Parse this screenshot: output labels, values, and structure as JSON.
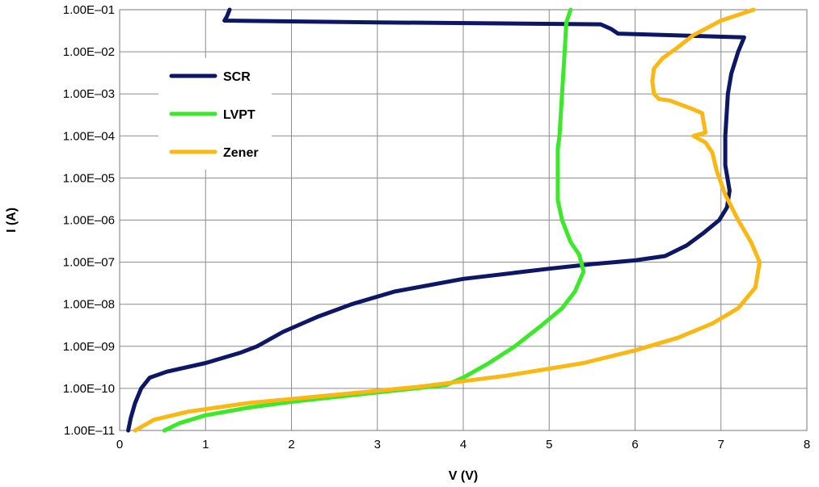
{
  "chart_data": {
    "type": "line",
    "title": "",
    "xlabel": "V (V)",
    "ylabel": "I (A)",
    "xlim": [
      0,
      8
    ],
    "y_scale": "log",
    "ylim": [
      1e-11,
      0.1
    ],
    "x_ticks": [
      "0",
      "1",
      "2",
      "3",
      "4",
      "5",
      "6",
      "7",
      "8"
    ],
    "y_ticks": [
      "1.00E–11",
      "1.00E–10",
      "1.00E–09",
      "1.00E–08",
      "1.00E–07",
      "1.00E–06",
      "1.00E–05",
      "1.00E–04",
      "1.00E–03",
      "1.00E–02",
      "1.00E–01"
    ],
    "grid": true,
    "legend_position": "top-left",
    "series": [
      {
        "name": "SCR",
        "color": "#0d1766",
        "points": [
          [
            0.1,
            1e-11
          ],
          [
            0.13,
            2e-11
          ],
          [
            0.18,
            4.5e-11
          ],
          [
            0.25,
            1e-10
          ],
          [
            0.35,
            1.8e-10
          ],
          [
            0.55,
            2.5e-10
          ],
          [
            1.0,
            4e-10
          ],
          [
            1.4,
            7e-10
          ],
          [
            1.6,
            1e-09
          ],
          [
            1.9,
            2.2e-09
          ],
          [
            2.3,
            5e-09
          ],
          [
            2.7,
            1e-08
          ],
          [
            3.2,
            2e-08
          ],
          [
            4.0,
            4e-08
          ],
          [
            5.0,
            7e-08
          ],
          [
            5.5,
            9e-08
          ],
          [
            6.0,
            1.1e-07
          ],
          [
            6.35,
            1.4e-07
          ],
          [
            6.6,
            2.5e-07
          ],
          [
            6.8,
            5e-07
          ],
          [
            6.98,
            1e-06
          ],
          [
            7.07,
            2e-06
          ],
          [
            7.1,
            5e-06
          ],
          [
            7.05,
            2e-05
          ],
          [
            7.05,
            0.0001
          ],
          [
            7.08,
            0.001
          ],
          [
            7.12,
            0.003
          ],
          [
            7.2,
            0.01
          ],
          [
            7.27,
            0.022
          ],
          [
            5.8,
            0.027
          ],
          [
            5.72,
            0.035
          ],
          [
            5.6,
            0.045
          ],
          [
            3.0,
            0.05
          ],
          [
            1.22,
            0.055
          ],
          [
            1.25,
            0.07
          ],
          [
            1.28,
            0.1
          ]
        ]
      },
      {
        "name": "LVPT",
        "color": "#3ce82a",
        "points": [
          [
            0.52,
            1e-11
          ],
          [
            0.7,
            1.5e-11
          ],
          [
            1.0,
            2.3e-11
          ],
          [
            1.5,
            3.5e-11
          ],
          [
            2.0,
            4.8e-11
          ],
          [
            3.0,
            8e-11
          ],
          [
            3.8,
            1.2e-10
          ],
          [
            4.0,
            1.8e-10
          ],
          [
            4.3,
            4e-10
          ],
          [
            4.6,
            1e-09
          ],
          [
            4.9,
            3e-09
          ],
          [
            5.15,
            8e-09
          ],
          [
            5.3,
            2e-08
          ],
          [
            5.4,
            6e-08
          ],
          [
            5.35,
            1.5e-07
          ],
          [
            5.25,
            3e-07
          ],
          [
            5.15,
            1e-06
          ],
          [
            5.1,
            3e-06
          ],
          [
            5.1,
            1e-05
          ],
          [
            5.1,
            5e-05
          ],
          [
            5.12,
            0.0001
          ],
          [
            5.15,
            0.001
          ],
          [
            5.18,
            0.01
          ],
          [
            5.2,
            0.05
          ],
          [
            5.25,
            0.1
          ]
        ]
      },
      {
        "name": "Zener",
        "color": "#fbb713",
        "points": [
          [
            0.18,
            1e-11
          ],
          [
            0.4,
            1.8e-11
          ],
          [
            0.8,
            2.8e-11
          ],
          [
            1.5,
            4.5e-11
          ],
          [
            2.5,
            7e-11
          ],
          [
            3.5,
            1.1e-10
          ],
          [
            4.5,
            2e-10
          ],
          [
            5.4,
            4e-10
          ],
          [
            6.0,
            8e-10
          ],
          [
            6.5,
            1.6e-09
          ],
          [
            6.9,
            3.5e-09
          ],
          [
            7.2,
            8e-09
          ],
          [
            7.4,
            2.5e-08
          ],
          [
            7.45,
            1e-07
          ],
          [
            7.35,
            3e-07
          ],
          [
            7.2,
            1e-06
          ],
          [
            7.05,
            4e-06
          ],
          [
            6.95,
            1.5e-05
          ],
          [
            6.9,
            4e-05
          ],
          [
            6.82,
            7e-05
          ],
          [
            6.68,
            0.0001
          ],
          [
            6.82,
            0.00012
          ],
          [
            6.8,
            0.0002
          ],
          [
            6.78,
            0.00035
          ],
          [
            6.65,
            0.00045
          ],
          [
            6.4,
            0.0007
          ],
          [
            6.28,
            0.00075
          ],
          [
            6.22,
            0.001
          ],
          [
            6.2,
            0.002
          ],
          [
            6.22,
            0.004
          ],
          [
            6.32,
            0.007
          ],
          [
            6.48,
            0.012
          ],
          [
            6.68,
            0.025
          ],
          [
            7.0,
            0.055
          ],
          [
            7.38,
            0.1
          ]
        ]
      }
    ]
  }
}
